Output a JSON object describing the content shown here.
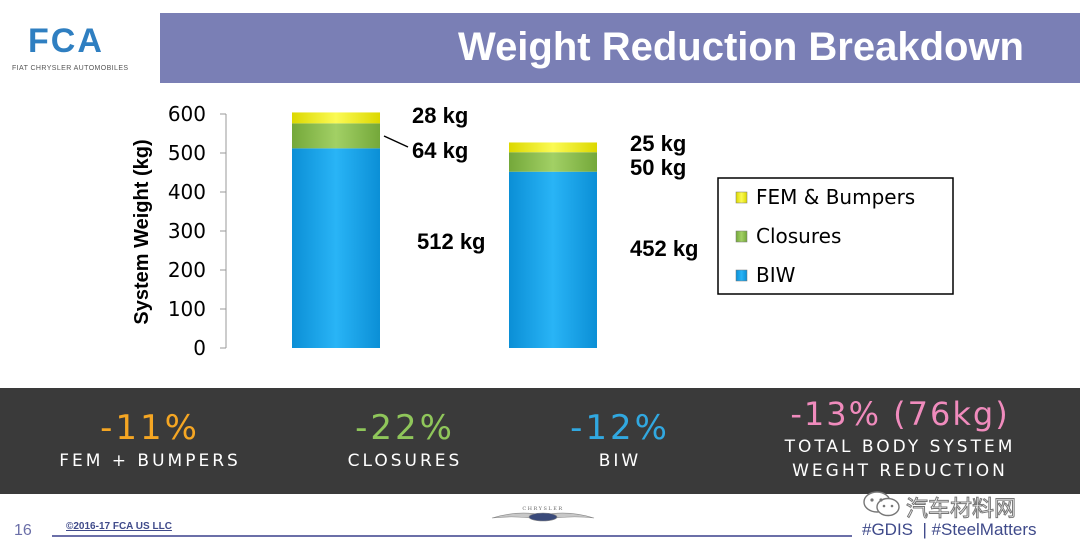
{
  "header": {
    "logo_text": "FCA",
    "logo_subtitle": "FIAT CHRYSLER AUTOMOBILES",
    "title": "Weight Reduction Breakdown"
  },
  "chart_data": {
    "type": "bar",
    "stacked": true,
    "ylabel": "System Weight (kg)",
    "ylim": [
      0,
      600
    ],
    "yticks": [
      "0",
      "100",
      "200",
      "300",
      "400",
      "500",
      "600"
    ],
    "grid": false,
    "legend_position": "right",
    "series": [
      {
        "name": "BIW",
        "color": "#11a6ee",
        "values": [
          512,
          452
        ],
        "labels": [
          "512 kg",
          "452 kg"
        ]
      },
      {
        "name": "Closures",
        "color": "#8cc04e",
        "values": [
          64,
          50
        ],
        "labels": [
          "64 kg",
          "50 kg"
        ]
      },
      {
        "name": "FEM & Bumpers",
        "color": "#f4f20f",
        "values": [
          28,
          25
        ],
        "labels": [
          "28 kg",
          "25 kg"
        ]
      }
    ],
    "legend": [
      "FEM & Bumpers",
      "Closures",
      "BIW"
    ]
  },
  "stats": [
    {
      "value": "-11%",
      "label": "FEM + BUMPERS"
    },
    {
      "value": "-22%",
      "label": "CLOSURES"
    },
    {
      "value": "-12%",
      "label": "BIW"
    },
    {
      "value": "-13% (76kg)",
      "label_line1": "TOTAL BODY SYSTEM",
      "label_line2": "WEGHT REDUCTION"
    }
  ],
  "footer": {
    "page_number": "16",
    "copyright": "©2016-17 FCA US LLC",
    "brand": "CHRYSLER",
    "hashtags": "#GDIS  | #SteelMatters",
    "watermark": "汽车材料网"
  },
  "colors": {
    "title_bar": "#7a7fb5",
    "stats_band": "#3a3a3a",
    "logo_blue": "#2f7fc1"
  }
}
